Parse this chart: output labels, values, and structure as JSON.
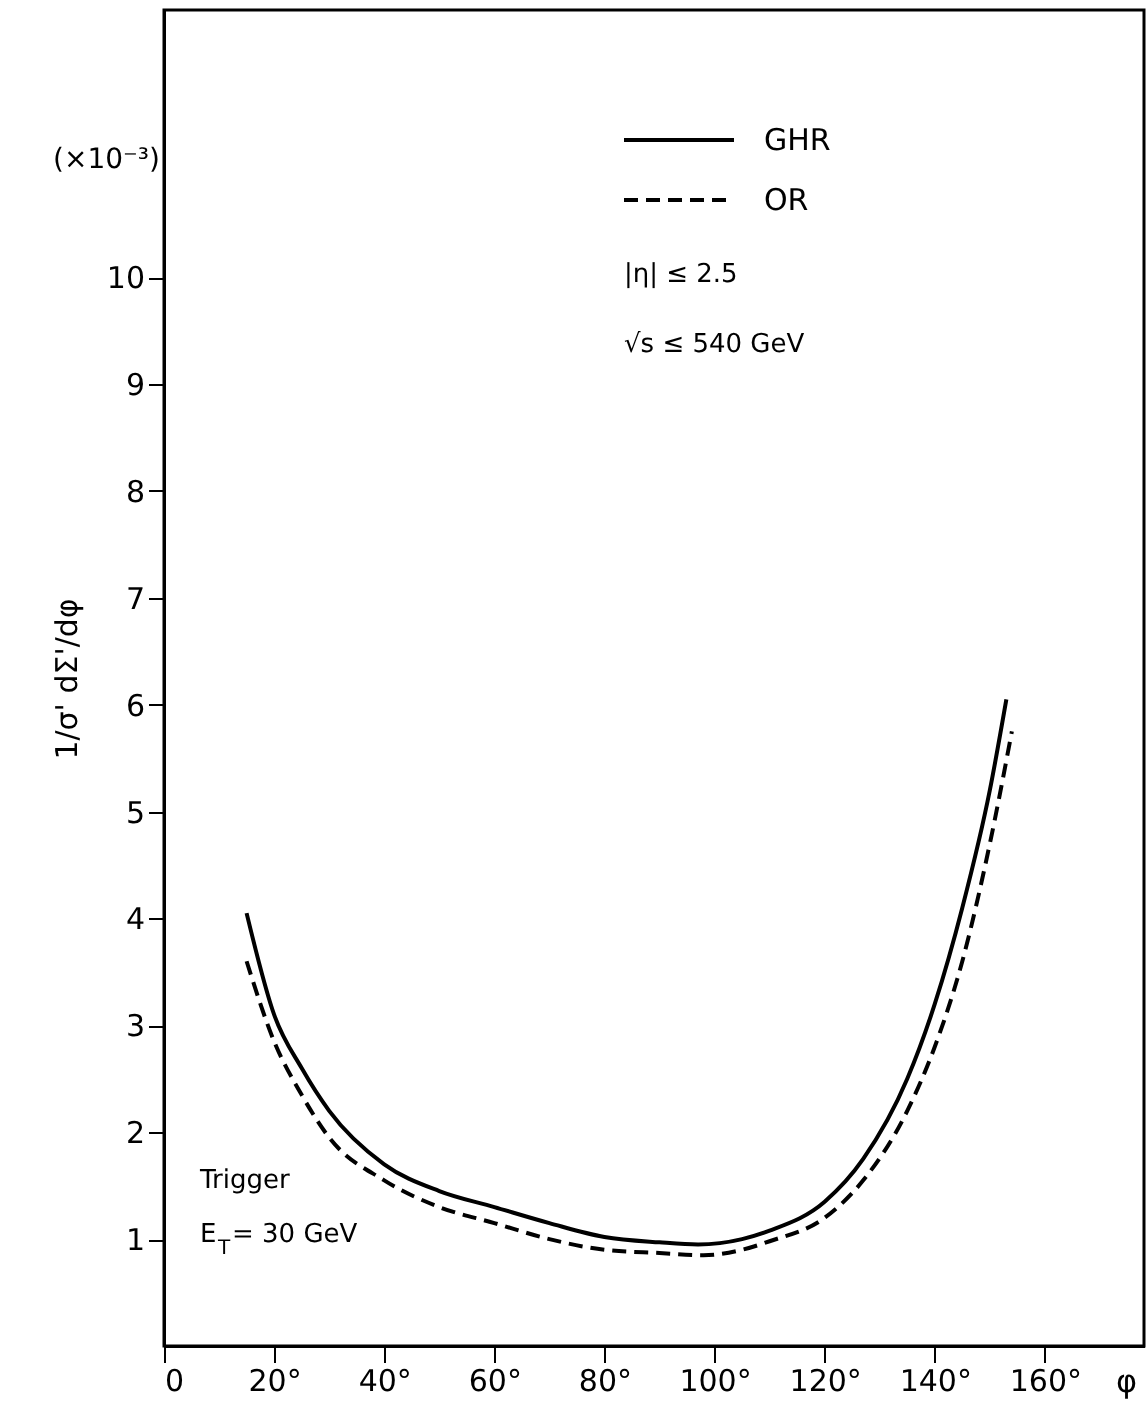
{
  "chart_data": {
    "type": "line",
    "xlabel": "φ",
    "ylabel": "1/σ' dΣ'/dφ",
    "xlim": [
      0,
      178
    ],
    "ylim": [
      0,
      12.5
    ],
    "xticks": [
      0,
      {
        "value": 20,
        "label": "20°"
      },
      {
        "value": 40,
        "label": "40°"
      },
      {
        "value": 60,
        "label": "60°"
      },
      {
        "value": 80,
        "label": "80°"
      },
      {
        "value": 100,
        "label": "100°"
      },
      {
        "value": 120,
        "label": "120°"
      },
      {
        "value": 140,
        "label": "140°"
      },
      {
        "value": 160,
        "label": "160°"
      }
    ],
    "yticks": [
      1,
      2,
      3,
      4,
      5,
      6,
      7,
      8,
      9,
      10
    ],
    "grid": false,
    "legend": "top right",
    "marker": "none",
    "series": [
      {
        "name": "GHR",
        "color": "#000000",
        "line_style": "solid",
        "x": [
          15,
          20,
          25,
          30,
          40,
          50,
          60,
          70,
          80,
          90,
          97,
          105,
          110,
          120,
          127,
          135,
          140,
          145,
          150,
          153
        ],
        "values": [
          4.05,
          3.1,
          2.6,
          2.2,
          1.7,
          1.45,
          1.3,
          1.15,
          1.02,
          0.97,
          0.95,
          1.0,
          1.08,
          1.35,
          1.75,
          2.5,
          3.2,
          4.1,
          5.2,
          6.05
        ]
      },
      {
        "name": "OR",
        "color": "#000000",
        "line_style": "dashed",
        "x": [
          15,
          20,
          25,
          30,
          40,
          50,
          60,
          70,
          80,
          90,
          98,
          105,
          110,
          120,
          127,
          135,
          140,
          145,
          150,
          154
        ],
        "values": [
          3.6,
          2.85,
          2.35,
          1.95,
          1.55,
          1.3,
          1.15,
          1.0,
          0.9,
          0.87,
          0.85,
          0.9,
          0.98,
          1.2,
          1.55,
          2.2,
          2.8,
          3.6,
          4.7,
          5.75
        ]
      }
    ],
    "annotations": [
      "(×10⁻³)",
      "|η| ≤ 2.5",
      "√s ≤ 540 GeV",
      "Trigger",
      "E$_{T}$= 30 GeV"
    ]
  }
}
